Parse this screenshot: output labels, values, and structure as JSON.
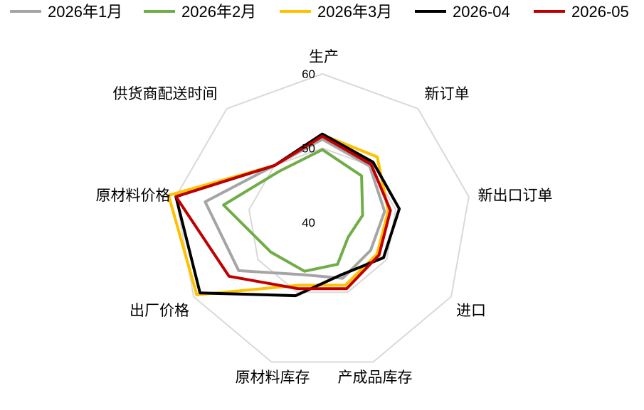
{
  "chart_data": {
    "type": "radar",
    "axes": [
      "生产",
      "新订单",
      "新出口订单",
      "进口",
      "产成品库存",
      "原材料库存",
      "出厂价格",
      "原材料价格",
      "供货商配送时间"
    ],
    "rmin": 40,
    "rmax": 60,
    "ticks": [
      40,
      50,
      60
    ],
    "legend_position": "top",
    "series": [
      {
        "name": "2026年1月",
        "color": "#a5a5a5",
        "values": [
          51.2,
          49.9,
          48.5,
          47.5,
          48.0,
          47.5,
          53.0,
          56.0,
          50.0
        ]
      },
      {
        "name": "2026年2月",
        "color": "#70ad47",
        "values": [
          49.8,
          48.2,
          45.5,
          44.0,
          46.0,
          47.0,
          48.0,
          53.5,
          49.0
        ]
      },
      {
        "name": "2026年3月",
        "color": "#ffc000",
        "values": [
          51.8,
          51.5,
          49.0,
          48.5,
          49.0,
          49.0,
          59.5,
          61.0,
          50.0
        ]
      },
      {
        "name": "2026-04",
        "color": "#000000",
        "values": [
          51.9,
          50.6,
          50.5,
          49.5,
          47.5,
          50.5,
          59.0,
          60.0,
          50.0
        ]
      },
      {
        "name": "2026-05",
        "color": "#c00000",
        "values": [
          51.6,
          50.2,
          49.3,
          48.8,
          49.5,
          49.5,
          54.5,
          60.0,
          50.0
        ]
      }
    ]
  }
}
